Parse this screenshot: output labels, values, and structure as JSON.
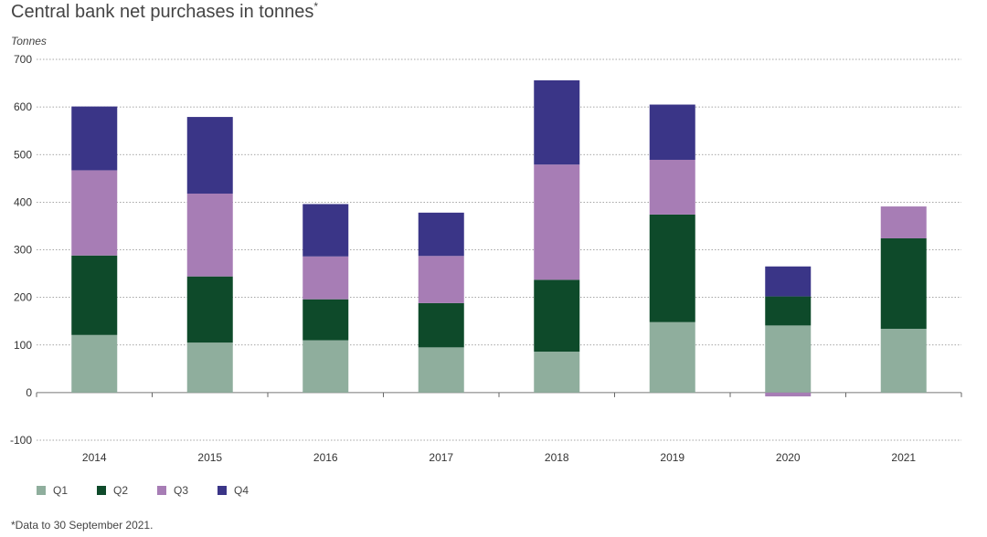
{
  "title": "Central bank net purchases in tonnes",
  "title_mark": "*",
  "footnote": "*Data to 30 September 2021.",
  "chart_data": {
    "type": "bar",
    "stacked": true,
    "title": "Central bank net purchases in tonnes",
    "ylabel": "Tonnes",
    "xlabel": "",
    "categories": [
      "2014",
      "2015",
      "2016",
      "2017",
      "2018",
      "2019",
      "2020",
      "2021"
    ],
    "ylim": [
      -100,
      700
    ],
    "yticks": [
      -100,
      0,
      100,
      200,
      300,
      400,
      500,
      600,
      700
    ],
    "grid": true,
    "legend_position": "bottom-left",
    "series": [
      {
        "name": "Q1",
        "color": "#8fae9d",
        "values": [
          121,
          105,
          110,
          95,
          86,
          148,
          141,
          134
        ]
      },
      {
        "name": "Q2",
        "color": "#0e4a2a",
        "values": [
          167,
          139,
          86,
          93,
          151,
          226,
          61,
          190
        ]
      },
      {
        "name": "Q3",
        "color": "#a77db5",
        "values": [
          179,
          174,
          90,
          99,
          242,
          115,
          -8,
          67
        ]
      },
      {
        "name": "Q4",
        "color": "#3a3587",
        "values": [
          134,
          161,
          110,
          91,
          177,
          116,
          63,
          0
        ]
      }
    ]
  }
}
